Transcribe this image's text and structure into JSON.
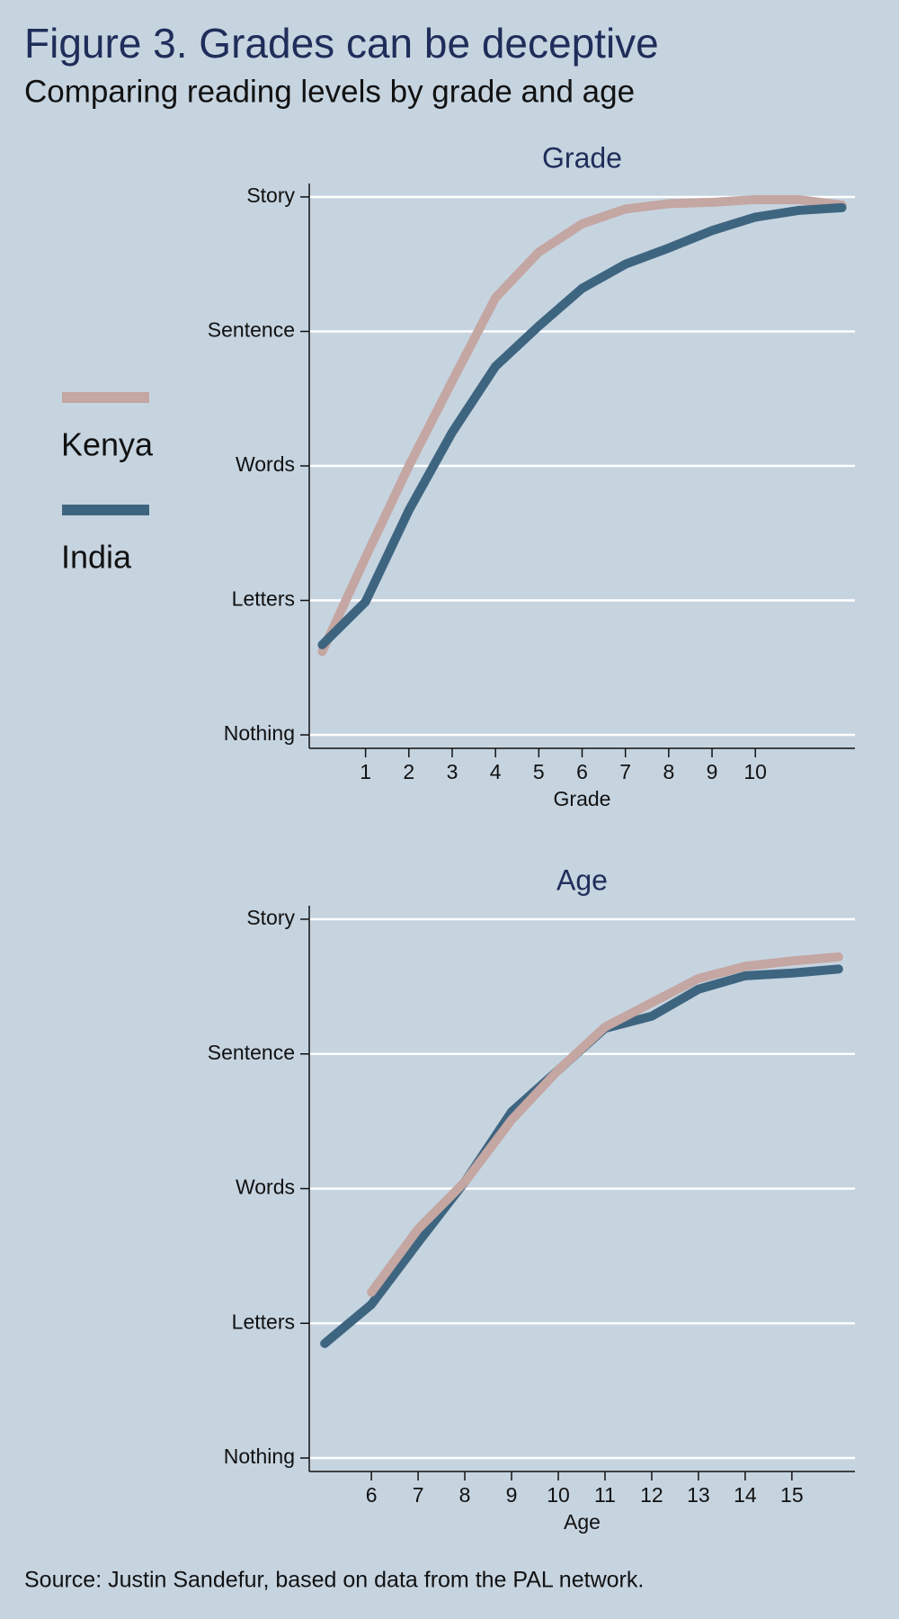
{
  "title": "Figure 3. Grades can be deceptive",
  "subtitle": "Comparing reading levels by grade and age",
  "source": "Source: Justin Sandefur, based on data from the PAL network.",
  "chart_data": [
    {
      "type": "line",
      "title": "Grade",
      "x_label": "Grade",
      "x": [
        0,
        1,
        2,
        3,
        4,
        5,
        6,
        7,
        8,
        9,
        10,
        11,
        12
      ],
      "xlim": [
        -0.3,
        12.3
      ],
      "xticks": [
        1,
        2,
        3,
        4,
        5,
        6,
        7,
        8,
        9,
        10
      ],
      "ylim": [
        -0.1,
        4.1
      ],
      "yticks": [
        {
          "value": 0,
          "label": "Nothing"
        },
        {
          "value": 1,
          "label": "Letters"
        },
        {
          "value": 2,
          "label": "Words"
        },
        {
          "value": 3,
          "label": "Sentence"
        },
        {
          "value": 4,
          "label": "Story"
        }
      ],
      "grid": true,
      "series": [
        {
          "name": "Kenya",
          "color": "#c4a6a2",
          "values": [
            0.62,
            1.32,
            2.0,
            2.63,
            3.25,
            3.59,
            3.8,
            3.91,
            3.95,
            3.96,
            3.98,
            3.98,
            3.94
          ]
        },
        {
          "name": "India",
          "color": "#3e6580",
          "values": [
            0.67,
            0.99,
            1.67,
            2.25,
            2.74,
            3.04,
            3.32,
            3.5,
            3.62,
            3.75,
            3.85,
            3.9,
            3.92
          ]
        }
      ]
    },
    {
      "type": "line",
      "title": "Age",
      "x_label": "Age",
      "xlim": [
        4.67,
        16.35
      ],
      "xticks": [
        6,
        7,
        8,
        9,
        10,
        11,
        12,
        13,
        14,
        15
      ],
      "ylim": [
        -0.1,
        4.1
      ],
      "yticks": [
        {
          "value": 0,
          "label": "Nothing"
        },
        {
          "value": 1,
          "label": "Letters"
        },
        {
          "value": 2,
          "label": "Words"
        },
        {
          "value": 3,
          "label": "Sentence"
        },
        {
          "value": 4,
          "label": "Story"
        }
      ],
      "grid": true,
      "series": [
        {
          "color": "#3e6580",
          "x": [
            5,
            6,
            7,
            8,
            9,
            10,
            11,
            12,
            13,
            14,
            15,
            16
          ],
          "values": [
            0.85,
            1.14,
            1.6,
            2.05,
            2.57,
            2.88,
            3.19,
            3.28,
            3.48,
            3.58,
            3.6,
            3.63
          ]
        },
        {
          "color": "#c4a6a2",
          "x": [
            6,
            7,
            8,
            9,
            10,
            11,
            12,
            13,
            14,
            15,
            16
          ],
          "values": [
            1.23,
            1.7,
            2.05,
            2.51,
            2.88,
            3.2,
            3.38,
            3.56,
            3.65,
            3.69,
            3.72
          ]
        }
      ]
    }
  ]
}
